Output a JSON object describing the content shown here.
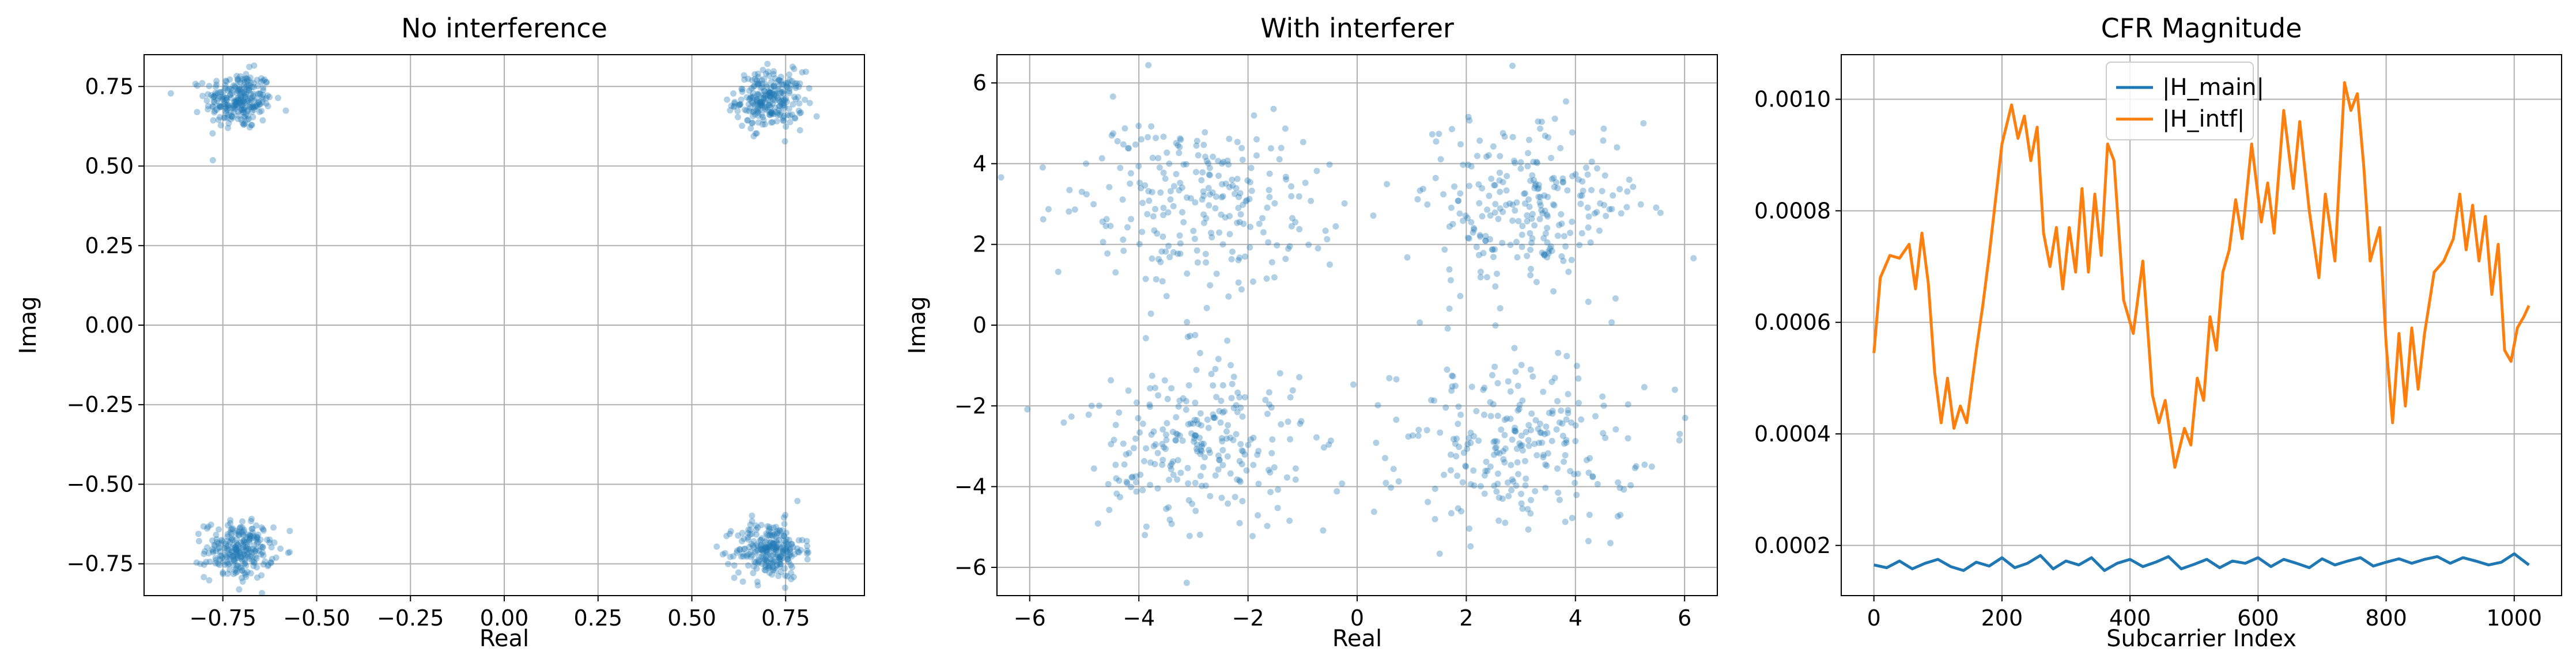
{
  "chart_data": [
    {
      "type": "scatter",
      "title": "No interference",
      "xlabel": "Real",
      "ylabel": "Imag",
      "xlim": [
        -0.96,
        0.96
      ],
      "ylim": [
        -0.85,
        0.85
      ],
      "xticks": [
        -0.75,
        -0.5,
        -0.25,
        0.0,
        0.25,
        0.5,
        0.75
      ],
      "xtick_labels": [
        "−0.75",
        "−0.50",
        "−0.25",
        "0.00",
        "0.25",
        "0.50",
        "0.75"
      ],
      "yticks": [
        -0.75,
        -0.5,
        -0.25,
        0.0,
        0.25,
        0.5,
        0.75
      ],
      "ytick_labels": [
        "−0.75",
        "−0.50",
        "−0.25",
        "0.00",
        "0.25",
        "0.50",
        "0.75"
      ],
      "grid": true,
      "series": [
        {
          "color": "#1f77b4",
          "alpha": 0.35,
          "cluster_centers": [
            [
              -0.707,
              0.707
            ],
            [
              0.707,
              0.707
            ],
            [
              -0.707,
              -0.707
            ],
            [
              0.707,
              -0.707
            ]
          ],
          "points_per_cluster": 250,
          "spread": 0.045
        }
      ]
    },
    {
      "type": "scatter",
      "title": "With interferer",
      "xlabel": "Real",
      "ylabel": "Imag",
      "xlim": [
        -6.6,
        6.6
      ],
      "ylim": [
        -6.7,
        6.7
      ],
      "xticks": [
        -6,
        -4,
        -2,
        0,
        2,
        4,
        6
      ],
      "xtick_labels": [
        "−6",
        "−4",
        "−2",
        "0",
        "2",
        "4",
        "6"
      ],
      "yticks": [
        -6,
        -4,
        -2,
        0,
        2,
        4,
        6
      ],
      "ytick_labels": [
        "−6",
        "−4",
        "−2",
        "0",
        "2",
        "4",
        "6"
      ],
      "grid": true,
      "series": [
        {
          "color": "#1f77b4",
          "alpha": 0.35,
          "cluster_centers": [
            [
              -3,
              3
            ],
            [
              3,
              3
            ],
            [
              -3,
              -3
            ],
            [
              3,
              -3
            ]
          ],
          "points_per_cluster": 250,
          "spread": 1.1
        }
      ]
    },
    {
      "type": "line",
      "title": "CFR Magnitude",
      "xlabel": "Subcarrier Index",
      "ylabel": "",
      "xlim": [
        -51,
        1074
      ],
      "ylim": [
        0.00011,
        0.00108
      ],
      "xticks": [
        0,
        200,
        400,
        600,
        800,
        1000
      ],
      "xtick_labels": [
        "0",
        "200",
        "400",
        "600",
        "800",
        "1000"
      ],
      "yticks": [
        0.0002,
        0.0004,
        0.0006,
        0.0008,
        0.001
      ],
      "ytick_labels": [
        "0.0002",
        "0.0004",
        "0.0006",
        "0.0008",
        "0.0010"
      ],
      "grid": true,
      "legend_position": "top-center",
      "series": [
        {
          "name": "|H_main|",
          "color": "#1f77b4",
          "x": [
            0,
            20,
            40,
            60,
            80,
            100,
            120,
            140,
            160,
            180,
            200,
            220,
            240,
            260,
            280,
            300,
            320,
            340,
            360,
            380,
            400,
            420,
            440,
            460,
            480,
            500,
            520,
            540,
            560,
            580,
            600,
            620,
            640,
            660,
            680,
            700,
            720,
            740,
            760,
            780,
            800,
            820,
            840,
            860,
            880,
            900,
            920,
            940,
            960,
            980,
            1000,
            1023
          ],
          "y": [
            0.000165,
            0.00016,
            0.000172,
            0.000158,
            0.000168,
            0.000175,
            0.000162,
            0.000155,
            0.00017,
            0.000163,
            0.000178,
            0.00016,
            0.000168,
            0.000182,
            0.000158,
            0.000172,
            0.000165,
            0.000178,
            0.000155,
            0.000168,
            0.000175,
            0.000162,
            0.00017,
            0.00018,
            0.000158,
            0.000166,
            0.000175,
            0.00016,
            0.000172,
            0.000168,
            0.000178,
            0.000162,
            0.000175,
            0.000168,
            0.00016,
            0.000176,
            0.000165,
            0.000172,
            0.000178,
            0.000163,
            0.00017,
            0.000176,
            0.000168,
            0.000175,
            0.00018,
            0.000168,
            0.000178,
            0.000172,
            0.000165,
            0.00017,
            0.000185,
            0.000165
          ]
        },
        {
          "name": "|H_intf|",
          "color": "#ff7f0e",
          "x": [
            0,
            10,
            25,
            40,
            55,
            65,
            75,
            85,
            95,
            105,
            115,
            125,
            135,
            145,
            160,
            170,
            180,
            190,
            200,
            215,
            225,
            235,
            245,
            255,
            265,
            275,
            285,
            295,
            305,
            315,
            325,
            335,
            345,
            355,
            365,
            375,
            390,
            405,
            420,
            435,
            445,
            455,
            470,
            485,
            495,
            505,
            515,
            525,
            535,
            545,
            555,
            565,
            575,
            590,
            605,
            615,
            625,
            640,
            655,
            665,
            680,
            695,
            705,
            720,
            735,
            745,
            755,
            765,
            775,
            790,
            800,
            810,
            820,
            830,
            840,
            850,
            860,
            875,
            890,
            905,
            915,
            925,
            935,
            945,
            955,
            965,
            975,
            985,
            995,
            1005,
            1015,
            1023
          ],
          "y": [
            0.000545,
            0.00068,
            0.00072,
            0.000715,
            0.00074,
            0.00066,
            0.00076,
            0.00067,
            0.00051,
            0.00042,
            0.0005,
            0.00041,
            0.00045,
            0.00042,
            0.00055,
            0.00063,
            0.00072,
            0.00082,
            0.00092,
            0.00099,
            0.00093,
            0.00097,
            0.00089,
            0.00095,
            0.00076,
            0.0007,
            0.00077,
            0.00066,
            0.00077,
            0.00069,
            0.00084,
            0.00069,
            0.00083,
            0.00072,
            0.00092,
            0.00089,
            0.00064,
            0.00058,
            0.00071,
            0.00047,
            0.00042,
            0.00046,
            0.00034,
            0.00041,
            0.00038,
            0.0005,
            0.00046,
            0.00061,
            0.00055,
            0.00069,
            0.00073,
            0.00082,
            0.00075,
            0.00092,
            0.00078,
            0.00085,
            0.00076,
            0.00098,
            0.00084,
            0.00096,
            0.0008,
            0.00068,
            0.00083,
            0.00071,
            0.00103,
            0.00098,
            0.00101,
            0.00088,
            0.00071,
            0.00077,
            0.00056,
            0.00042,
            0.00058,
            0.00045,
            0.00059,
            0.00048,
            0.00058,
            0.00069,
            0.00071,
            0.00075,
            0.00083,
            0.00073,
            0.00081,
            0.00071,
            0.00079,
            0.00065,
            0.00074,
            0.00055,
            0.00053,
            0.00059,
            0.00061,
            0.00063
          ]
        }
      ]
    }
  ]
}
